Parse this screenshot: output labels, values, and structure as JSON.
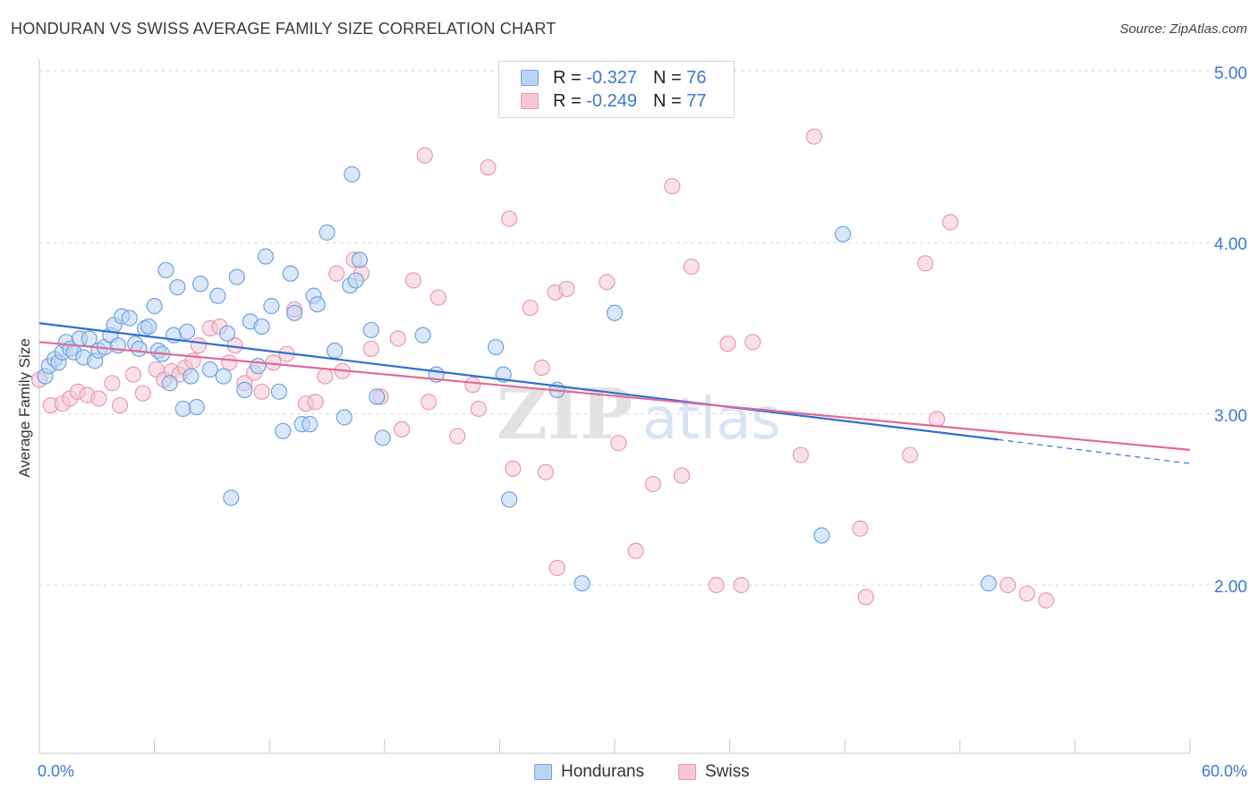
{
  "chart_data": {
    "type": "scatter",
    "title": "HONDURAN VS SWISS AVERAGE FAMILY SIZE CORRELATION CHART",
    "source": "Source: ZipAtlas.com",
    "ylabel": "Average Family Size",
    "xlim": [
      0,
      60
    ],
    "ylim": [
      1.0,
      5.1
    ],
    "x_tick_labels": [
      "0.0%",
      "60.0%"
    ],
    "y_ticks": [
      2.0,
      3.0,
      4.0,
      5.0
    ],
    "y_tick_labels": [
      "2.00",
      "3.00",
      "4.00",
      "5.00"
    ],
    "grid": "horizontal dashed",
    "legend_position": "top-center",
    "watermark": "ZIPatlas",
    "series": [
      {
        "name": "Hondurans",
        "color": "#6fa3e0",
        "fill": "#b9d3f2",
        "line_color": "#2f6fd1",
        "R": "-0.327",
        "N": "76",
        "trend": {
          "x0": 0,
          "y0": 3.53,
          "x1": 50,
          "y1": 2.85,
          "dash_to_x": 60,
          "dash_to_y": 2.71
        },
        "points": [
          [
            0.3,
            3.22
          ],
          [
            0.5,
            3.28
          ],
          [
            0.8,
            3.32
          ],
          [
            1.0,
            3.3
          ],
          [
            1.2,
            3.36
          ],
          [
            1.4,
            3.42
          ],
          [
            1.6,
            3.38
          ],
          [
            1.8,
            3.36
          ],
          [
            2.1,
            3.44
          ],
          [
            2.3,
            3.33
          ],
          [
            2.6,
            3.44
          ],
          [
            2.9,
            3.31
          ],
          [
            3.1,
            3.37
          ],
          [
            3.4,
            3.39
          ],
          [
            3.7,
            3.46
          ],
          [
            3.9,
            3.52
          ],
          [
            4.1,
            3.4
          ],
          [
            4.3,
            3.57
          ],
          [
            4.7,
            3.56
          ],
          [
            5.0,
            3.41
          ],
          [
            5.2,
            3.38
          ],
          [
            5.5,
            3.5
          ],
          [
            5.7,
            3.51
          ],
          [
            6.0,
            3.63
          ],
          [
            6.2,
            3.37
          ],
          [
            6.4,
            3.35
          ],
          [
            6.6,
            3.84
          ],
          [
            6.8,
            3.18
          ],
          [
            7.0,
            3.46
          ],
          [
            7.2,
            3.74
          ],
          [
            7.5,
            3.03
          ],
          [
            7.7,
            3.48
          ],
          [
            7.9,
            3.22
          ],
          [
            8.2,
            3.04
          ],
          [
            8.4,
            3.76
          ],
          [
            8.9,
            3.26
          ],
          [
            9.3,
            3.69
          ],
          [
            9.6,
            3.22
          ],
          [
            9.8,
            3.47
          ],
          [
            10.0,
            2.51
          ],
          [
            10.3,
            3.8
          ],
          [
            10.7,
            3.14
          ],
          [
            11.0,
            3.54
          ],
          [
            11.4,
            3.28
          ],
          [
            11.6,
            3.51
          ],
          [
            11.8,
            3.92
          ],
          [
            12.1,
            3.63
          ],
          [
            12.5,
            3.13
          ],
          [
            12.7,
            2.9
          ],
          [
            13.1,
            3.82
          ],
          [
            13.3,
            3.59
          ],
          [
            13.7,
            2.94
          ],
          [
            14.1,
            2.94
          ],
          [
            14.3,
            3.69
          ],
          [
            14.5,
            3.64
          ],
          [
            15.0,
            4.06
          ],
          [
            15.4,
            3.37
          ],
          [
            15.9,
            2.98
          ],
          [
            16.2,
            3.75
          ],
          [
            16.3,
            4.4
          ],
          [
            16.5,
            3.78
          ],
          [
            16.7,
            3.9
          ],
          [
            17.3,
            3.49
          ],
          [
            17.6,
            3.1
          ],
          [
            17.9,
            2.86
          ],
          [
            20.0,
            3.46
          ],
          [
            20.7,
            3.23
          ],
          [
            23.8,
            3.39
          ],
          [
            24.2,
            3.23
          ],
          [
            24.5,
            2.5
          ],
          [
            27.0,
            3.14
          ],
          [
            28.3,
            2.01
          ],
          [
            30.0,
            3.59
          ],
          [
            40.8,
            2.29
          ],
          [
            41.9,
            4.05
          ],
          [
            49.5,
            2.01
          ]
        ]
      },
      {
        "name": "Swiss",
        "color": "#e99ab3",
        "fill": "#f6c6d5",
        "line_color": "#e06b95",
        "R": "-0.249",
        "N": "77",
        "trend": {
          "x0": 0,
          "y0": 3.42,
          "x1": 60,
          "y1": 2.79
        },
        "points": [
          [
            0.0,
            3.2
          ],
          [
            0.6,
            3.05
          ],
          [
            1.2,
            3.06
          ],
          [
            1.6,
            3.09
          ],
          [
            2.0,
            3.13
          ],
          [
            2.5,
            3.11
          ],
          [
            3.1,
            3.09
          ],
          [
            3.8,
            3.18
          ],
          [
            4.2,
            3.05
          ],
          [
            4.9,
            3.23
          ],
          [
            5.4,
            3.12
          ],
          [
            6.1,
            3.26
          ],
          [
            6.5,
            3.2
          ],
          [
            6.9,
            3.25
          ],
          [
            7.3,
            3.23
          ],
          [
            7.6,
            3.27
          ],
          [
            8.0,
            3.31
          ],
          [
            8.3,
            3.4
          ],
          [
            8.9,
            3.5
          ],
          [
            9.4,
            3.51
          ],
          [
            9.9,
            3.3
          ],
          [
            10.2,
            3.4
          ],
          [
            10.7,
            3.18
          ],
          [
            11.2,
            3.24
          ],
          [
            11.6,
            3.13
          ],
          [
            12.2,
            3.3
          ],
          [
            12.9,
            3.35
          ],
          [
            13.3,
            3.61
          ],
          [
            13.9,
            3.06
          ],
          [
            14.4,
            3.07
          ],
          [
            14.9,
            3.22
          ],
          [
            15.5,
            3.82
          ],
          [
            15.8,
            3.25
          ],
          [
            16.4,
            3.9
          ],
          [
            16.8,
            3.82
          ],
          [
            17.3,
            3.38
          ],
          [
            17.8,
            3.1
          ],
          [
            18.7,
            3.44
          ],
          [
            18.9,
            2.91
          ],
          [
            19.5,
            3.78
          ],
          [
            20.1,
            4.51
          ],
          [
            20.3,
            3.07
          ],
          [
            20.8,
            3.68
          ],
          [
            21.8,
            2.87
          ],
          [
            22.6,
            3.17
          ],
          [
            22.9,
            3.03
          ],
          [
            23.4,
            4.44
          ],
          [
            24.5,
            4.14
          ],
          [
            24.7,
            2.68
          ],
          [
            25.6,
            3.62
          ],
          [
            26.2,
            3.27
          ],
          [
            26.4,
            2.66
          ],
          [
            26.9,
            3.71
          ],
          [
            27.0,
            2.1
          ],
          [
            27.5,
            3.73
          ],
          [
            29.6,
            3.77
          ],
          [
            30.2,
            2.83
          ],
          [
            31.1,
            2.2
          ],
          [
            32.0,
            2.59
          ],
          [
            33.0,
            4.33
          ],
          [
            33.5,
            2.64
          ],
          [
            34.0,
            3.86
          ],
          [
            35.3,
            2.0
          ],
          [
            35.9,
            3.41
          ],
          [
            36.6,
            2.0
          ],
          [
            37.2,
            3.42
          ],
          [
            39.7,
            2.76
          ],
          [
            40.4,
            4.62
          ],
          [
            42.8,
            2.33
          ],
          [
            43.1,
            1.93
          ],
          [
            45.4,
            2.76
          ],
          [
            46.2,
            3.88
          ],
          [
            46.8,
            2.97
          ],
          [
            47.5,
            4.12
          ],
          [
            50.5,
            2.0
          ],
          [
            51.5,
            1.95
          ],
          [
            52.5,
            1.91
          ]
        ]
      }
    ]
  },
  "legend": {
    "rows": [
      {
        "r_label": "R =",
        "r_value": "-0.327",
        "n_label": "N =",
        "n_value": "76"
      },
      {
        "r_label": "R =",
        "r_value": "-0.249",
        "n_label": "N =",
        "n_value": "77"
      }
    ]
  },
  "bottom_legend": [
    "Hondurans",
    "Swiss"
  ]
}
